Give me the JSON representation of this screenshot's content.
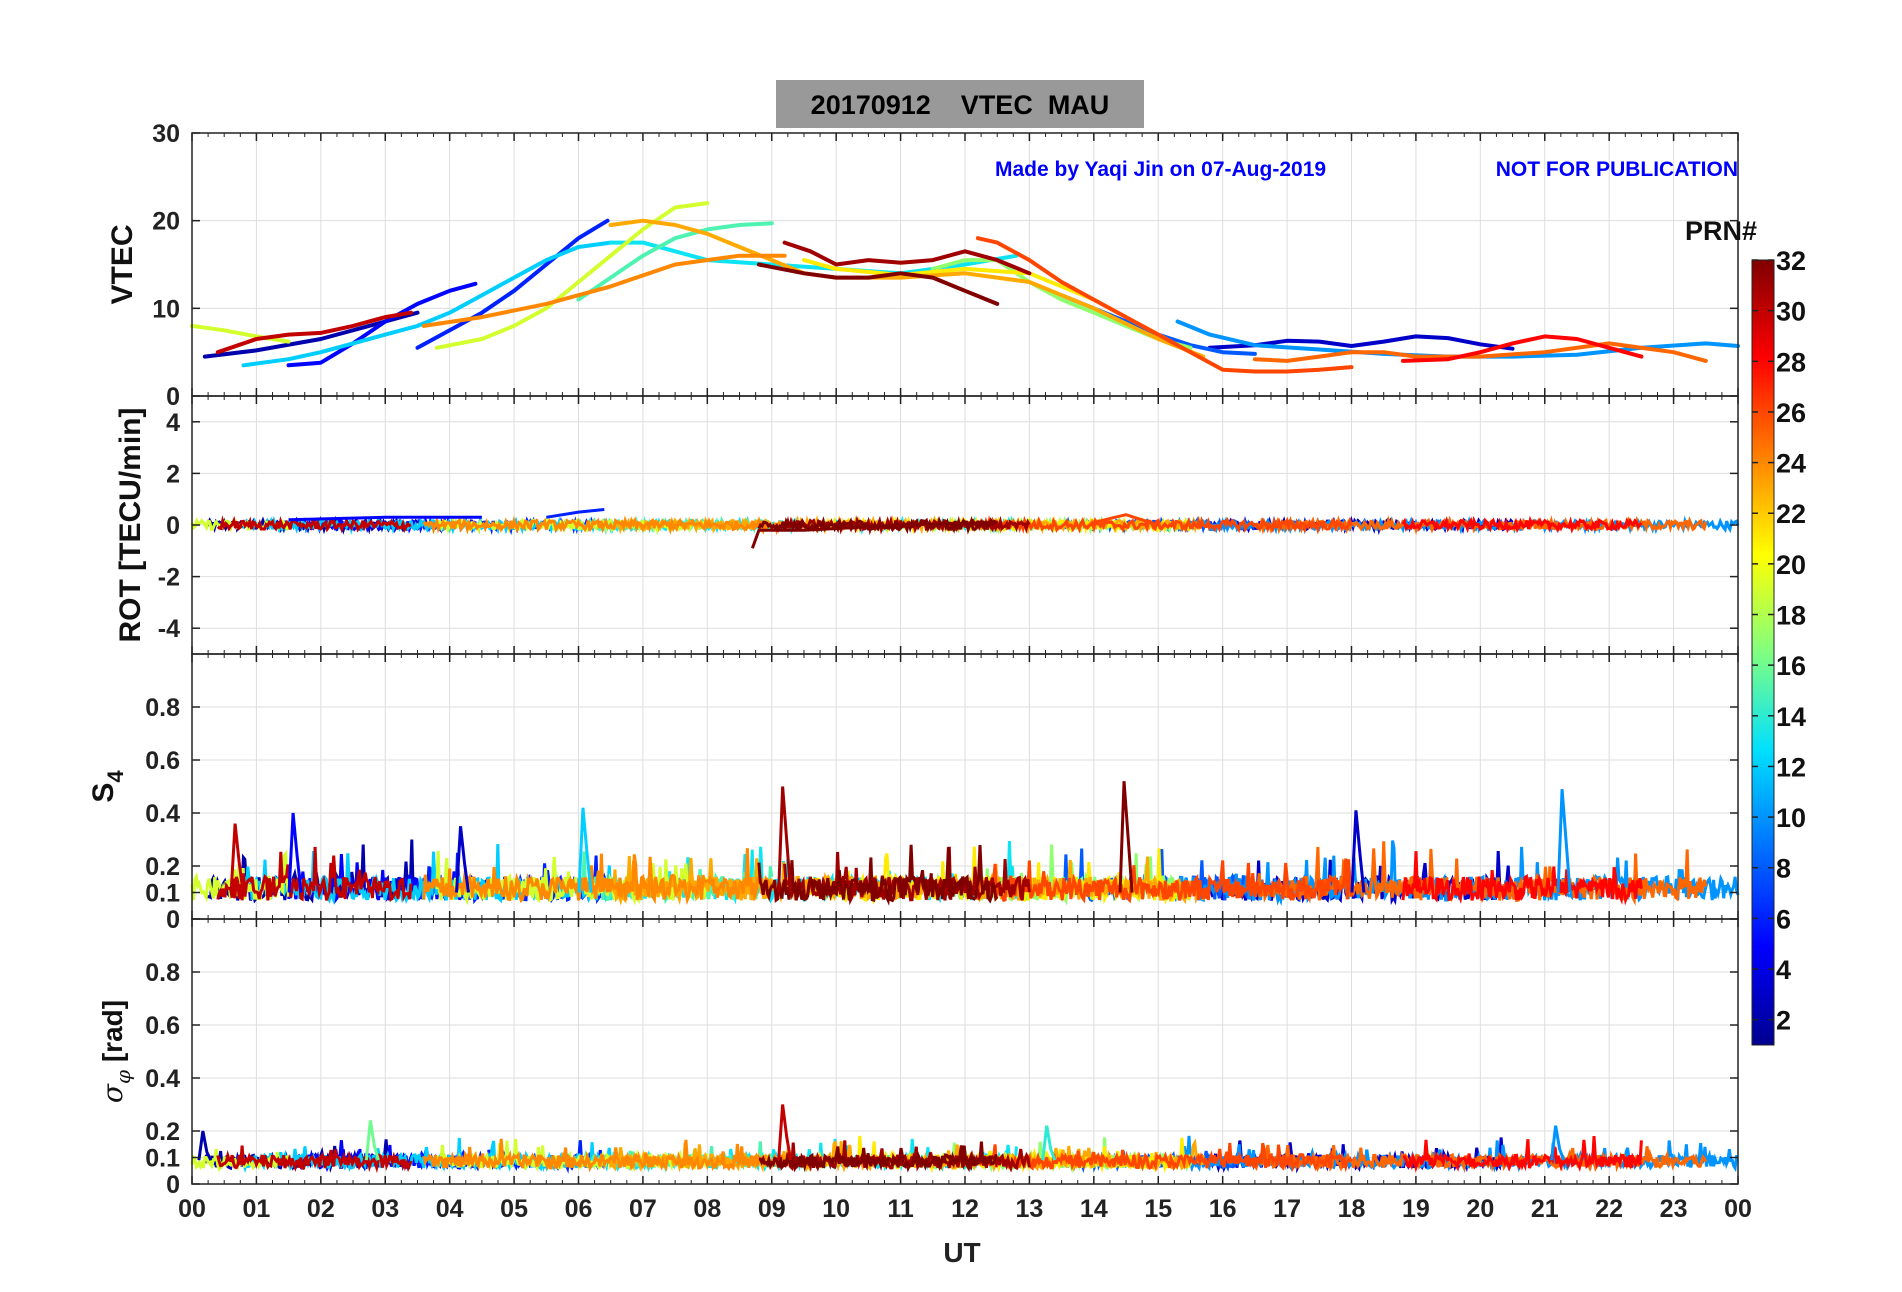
{
  "figure": {
    "title": "20170912    VTEC  MAU",
    "watermark_author": "Made by Yaqi Jin on 07-Aug-2019",
    "watermark_notice": "NOT FOR PUBLICATION",
    "xlabel": "UT",
    "x_ticks": [
      "00",
      "01",
      "02",
      "03",
      "04",
      "05",
      "06",
      "07",
      "08",
      "09",
      "10",
      "11",
      "12",
      "13",
      "14",
      "15",
      "16",
      "17",
      "18",
      "19",
      "20",
      "21",
      "22",
      "23",
      "00"
    ]
  },
  "colorbar": {
    "label": "PRN#",
    "range": [
      1,
      32
    ],
    "tick_labels": [
      "2",
      "4",
      "6",
      "8",
      "10",
      "12",
      "14",
      "16",
      "18",
      "20",
      "22",
      "24",
      "26",
      "28",
      "30",
      "32"
    ],
    "colormap": "jet",
    "stops": [
      "#00008f",
      "#0000ff",
      "#0080ff",
      "#00ffff",
      "#80ff80",
      "#ffff00",
      "#ff8000",
      "#ff0000",
      "#800000"
    ]
  },
  "chart_data": [
    {
      "type": "line",
      "title": "20170912    VTEC  MAU",
      "ylabel": "VTEC",
      "xlabel": "UT",
      "xlim": [
        0,
        24
      ],
      "ylim": [
        0,
        30
      ],
      "y_ticks": [
        0,
        10,
        20,
        30
      ],
      "grid": true,
      "series": [
        {
          "name": "PRN 2",
          "prn": 2,
          "x": [
            0.2,
            1.0,
            2.0,
            3.0,
            3.5
          ],
          "y": [
            4.5,
            5.2,
            6.5,
            8.5,
            9.5
          ]
        },
        {
          "name": "PRN 3",
          "prn": 3,
          "x": [
            15.8,
            16.5,
            17.0,
            17.5,
            18.0,
            18.5,
            19.0,
            19.5,
            20.0,
            20.5
          ],
          "y": [
            5.5,
            5.8,
            6.3,
            6.2,
            5.7,
            6.2,
            6.8,
            6.6,
            5.9,
            5.4
          ]
        },
        {
          "name": "PRN 5",
          "prn": 5,
          "x": [
            1.5,
            2.0,
            2.5,
            3.0,
            3.5,
            4.0,
            4.4
          ],
          "y": [
            3.5,
            3.8,
            6.0,
            8.5,
            10.5,
            12.0,
            12.8
          ]
        },
        {
          "name": "PRN 6",
          "prn": 6,
          "x": [
            3.5,
            4.0,
            4.5,
            5.0,
            5.5,
            6.0,
            6.45
          ],
          "y": [
            5.5,
            7.5,
            9.5,
            12.0,
            15.0,
            18.0,
            20.0
          ]
        },
        {
          "name": "PRN 8",
          "prn": 8,
          "x": [
            13.5,
            14.0,
            14.5,
            15.0,
            15.5,
            16.0,
            16.5
          ],
          "y": [
            11.5,
            10.0,
            8.5,
            7.0,
            5.8,
            5.0,
            4.8
          ]
        },
        {
          "name": "PRN 10",
          "prn": 10,
          "x": [
            15.3,
            15.8,
            16.5,
            17.5,
            18.5,
            19.5,
            20.5,
            21.5,
            22.5,
            23.5,
            24.0
          ],
          "y": [
            8.5,
            7.0,
            5.8,
            5.3,
            4.8,
            4.5,
            4.5,
            4.7,
            5.5,
            6.0,
            5.7
          ]
        },
        {
          "name": "PRN 12",
          "prn": 12,
          "x": [
            0.8,
            1.5,
            2.0,
            2.5,
            3.0,
            3.5,
            4.0,
            4.5,
            5.0,
            5.5,
            6.0,
            6.5
          ],
          "y": [
            3.5,
            4.2,
            5.0,
            6.0,
            7.0,
            8.0,
            9.5,
            11.5,
            13.5,
            15.5,
            17.0,
            17.5
          ]
        },
        {
          "name": "PRN 13",
          "prn": 13,
          "x": [
            6.5,
            7.0,
            7.5,
            8.0,
            9.0,
            10.0,
            11.0,
            12.0,
            12.8
          ],
          "y": [
            17.5,
            17.5,
            16.5,
            15.5,
            15.0,
            14.5,
            14.0,
            15.0,
            16.0
          ]
        },
        {
          "name": "PRN 15",
          "prn": 15,
          "x": [
            6.0,
            6.5,
            7.0,
            7.5,
            8.0,
            8.5,
            9.0
          ],
          "y": [
            11.0,
            13.5,
            16.0,
            18.0,
            19.0,
            19.5,
            19.7
          ]
        },
        {
          "name": "PRN 17",
          "prn": 17,
          "x": [
            11.5,
            12.0,
            12.5,
            13.0,
            13.5,
            14.0,
            14.5,
            15.0,
            15.5
          ],
          "y": [
            14.5,
            15.5,
            15.5,
            13.0,
            11.0,
            9.5,
            8.0,
            6.5,
            5.5
          ]
        },
        {
          "name": "PRN 19",
          "prn": 19,
          "x": [
            0.0,
            0.5,
            1.0,
            1.5
          ],
          "y": [
            8.0,
            7.5,
            6.8,
            6.2
          ]
        },
        {
          "name": "PRN 19b",
          "prn": 19,
          "x": [
            3.8,
            4.5,
            5.0,
            5.5,
            6.0,
            6.5,
            7.0,
            7.5,
            8.0
          ],
          "y": [
            5.5,
            6.5,
            8.0,
            10.0,
            13.0,
            16.0,
            19.0,
            21.5,
            22.0
          ]
        },
        {
          "name": "PRN 21",
          "prn": 21,
          "x": [
            9.5,
            10.0,
            11.0,
            12.0,
            13.0,
            14.0,
            15.0,
            15.5
          ],
          "y": [
            15.5,
            14.5,
            13.8,
            14.5,
            14.0,
            11.0,
            7.0,
            5.0
          ]
        },
        {
          "name": "PRN 23",
          "prn": 23,
          "x": [
            6.5,
            7.0,
            7.5,
            8.0,
            8.5,
            9.0,
            9.5,
            10.0,
            11.0,
            12.0,
            13.0,
            14.0,
            15.0,
            15.7
          ],
          "y": [
            19.5,
            20.0,
            19.5,
            18.5,
            17.0,
            15.5,
            14.0,
            13.5,
            13.5,
            14.0,
            13.0,
            10.0,
            6.5,
            4.5
          ]
        },
        {
          "name": "PRN 24",
          "prn": 24,
          "x": [
            3.6,
            4.5,
            5.5,
            6.5,
            7.5,
            8.5,
            9.2
          ],
          "y": [
            8.0,
            9.0,
            10.5,
            12.5,
            15.0,
            16.0,
            16.0
          ]
        },
        {
          "name": "PRN 25",
          "prn": 25,
          "x": [
            16.5,
            17.0,
            17.5,
            18.0,
            18.5,
            19.0,
            20.0,
            21.0,
            22.0,
            23.0,
            23.5
          ],
          "y": [
            4.2,
            4.0,
            4.5,
            5.0,
            5.0,
            4.5,
            4.5,
            5.0,
            6.0,
            5.0,
            4.0
          ]
        },
        {
          "name": "PRN 26",
          "prn": 26,
          "x": [
            12.2,
            12.5,
            13.0,
            13.5,
            14.0,
            14.5,
            15.0,
            15.5,
            16.0,
            16.5,
            17.0,
            17.5,
            18.0
          ],
          "y": [
            18.0,
            17.5,
            15.5,
            13.0,
            11.0,
            9.0,
            7.0,
            5.0,
            3.0,
            2.8,
            2.8,
            3.0,
            3.3
          ]
        },
        {
          "name": "PRN 28",
          "prn": 28,
          "x": [
            18.8,
            19.5,
            20.0,
            20.5,
            21.0,
            21.5,
            22.0,
            22.5
          ],
          "y": [
            4.0,
            4.2,
            5.0,
            6.0,
            6.8,
            6.5,
            5.5,
            4.5
          ]
        },
        {
          "name": "PRN 30",
          "prn": 30,
          "x": [
            0.4,
            1.0,
            1.5,
            2.0,
            2.5,
            3.0,
            3.4
          ],
          "y": [
            5.0,
            6.5,
            7.0,
            7.2,
            8.0,
            9.0,
            9.5
          ]
        },
        {
          "name": "PRN 31",
          "prn": 31,
          "x": [
            9.2,
            9.6,
            10.0,
            10.5,
            11.0,
            11.5,
            12.0,
            12.5,
            13.0
          ],
          "y": [
            17.5,
            16.5,
            15.0,
            15.5,
            15.2,
            15.5,
            16.5,
            15.5,
            14.0
          ]
        },
        {
          "name": "PRN 32",
          "prn": 32,
          "x": [
            8.8,
            9.5,
            10.0,
            10.5,
            11.0,
            11.5,
            12.0,
            12.5
          ],
          "y": [
            15.0,
            14.0,
            13.5,
            13.5,
            14.0,
            13.5,
            12.0,
            10.5
          ]
        }
      ]
    },
    {
      "type": "line",
      "ylabel": "ROT [TECU/min]",
      "xlabel": "UT",
      "xlim": [
        0,
        24
      ],
      "ylim": [
        -5,
        5
      ],
      "y_ticks": [
        -4,
        -2,
        0,
        2,
        4
      ],
      "grid": true,
      "description": "all PRN traces fluctuate near 0 TECU/min; largest excursions about +0.6 and -0.9",
      "series": [
        {
          "name": "PRN 5",
          "prn": 5,
          "x": [
            1.5,
            3.0,
            4.5
          ],
          "y": [
            0.2,
            0.3,
            0.3
          ]
        },
        {
          "name": "PRN 6",
          "prn": 6,
          "x": [
            5.5,
            6.0,
            6.4
          ],
          "y": [
            0.3,
            0.5,
            0.6
          ]
        },
        {
          "name": "PRN 32",
          "prn": 32,
          "x": [
            8.7,
            8.8,
            9.5,
            11.0,
            12.5
          ],
          "y": [
            -0.9,
            -0.2,
            -0.2,
            0.0,
            0.1
          ]
        },
        {
          "name": "PRN 26",
          "prn": 26,
          "x": [
            14.0,
            14.5,
            15.0
          ],
          "y": [
            0.1,
            0.4,
            0.0
          ]
        }
      ]
    },
    {
      "type": "line",
      "ylabel": "S4",
      "xlabel": "UT",
      "xlim": [
        0,
        24
      ],
      "ylim": [
        0,
        1
      ],
      "y_ticks": [
        0,
        0.1,
        0.2,
        0.4,
        0.6,
        0.8
      ],
      "y_tick_labels": [
        "0",
        "0.1",
        "0.2",
        "0.4",
        "0.6",
        "0.8"
      ],
      "grid": true,
      "description": "background S4 about 0.05-0.15 for all PRNs with spikes",
      "peaks": [
        {
          "prn": 30,
          "x": 0.7,
          "y": 0.36
        },
        {
          "prn": 5,
          "x": 1.6,
          "y": 0.4
        },
        {
          "prn": 3,
          "x": 4.2,
          "y": 0.35
        },
        {
          "prn": 12,
          "x": 6.1,
          "y": 0.42
        },
        {
          "prn": 31,
          "x": 9.2,
          "y": 0.5
        },
        {
          "prn": 32,
          "x": 14.5,
          "y": 0.52
        },
        {
          "prn": 3,
          "x": 18.1,
          "y": 0.41
        },
        {
          "prn": 10,
          "x": 21.3,
          "y": 0.49
        }
      ]
    },
    {
      "type": "line",
      "ylabel": "σ_φ [rad]",
      "xlabel": "UT",
      "xlim": [
        0,
        24
      ],
      "ylim": [
        0,
        1
      ],
      "y_ticks": [
        0,
        0.1,
        0.2,
        0.4,
        0.6,
        0.8
      ],
      "y_tick_labels": [
        "0",
        "0.1",
        "0.2",
        "0.4",
        "0.6",
        "0.8"
      ],
      "grid": true,
      "description": "background sigma-phi about 0.05-0.1 with small spikes",
      "peaks": [
        {
          "prn": 2,
          "x": 0.2,
          "y": 0.2
        },
        {
          "prn": 16,
          "x": 2.8,
          "y": 0.24
        },
        {
          "prn": 30,
          "x": 9.2,
          "y": 0.3
        },
        {
          "prn": 14,
          "x": 13.3,
          "y": 0.22
        },
        {
          "prn": 10,
          "x": 21.2,
          "y": 0.22
        }
      ]
    }
  ]
}
